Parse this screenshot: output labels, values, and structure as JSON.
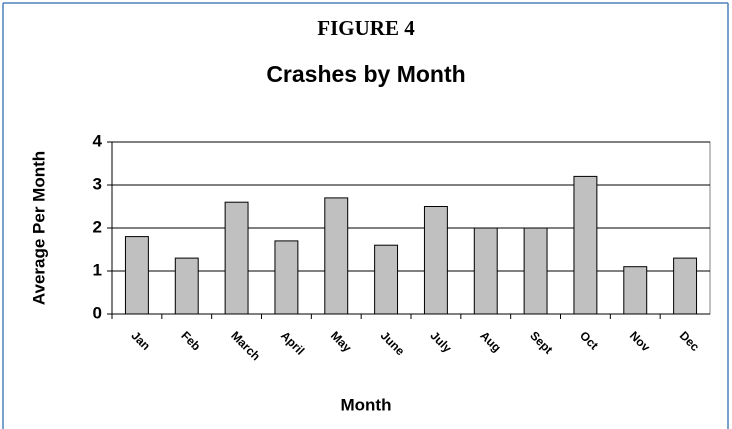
{
  "chart_data": {
    "type": "bar",
    "figure_label": "FIGURE 4",
    "title": "Crashes by Month",
    "x_label": "Month",
    "y_label": "Average Per Month",
    "categories": [
      "Jan",
      "Feb",
      "March",
      "April",
      "May",
      "June",
      "July",
      "Aug",
      "Sept",
      "Oct",
      "Nov",
      "Dec"
    ],
    "values": [
      1.8,
      1.3,
      2.6,
      1.7,
      2.7,
      1.6,
      2.5,
      2.0,
      2.0,
      3.2,
      1.1,
      1.3
    ],
    "color": "#c0c0c0",
    "ylim": [
      0,
      4
    ],
    "yticks": [
      0,
      1,
      2,
      3,
      4
    ],
    "grid": true
  }
}
